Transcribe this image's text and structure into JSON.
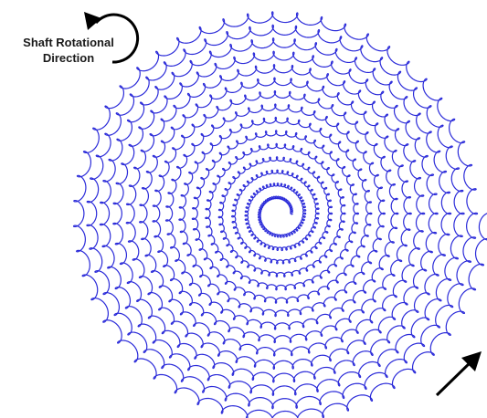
{
  "diagram": {
    "label_line_1": "Shaft Rotational",
    "label_line_2": "Direction",
    "colors": {
      "trajectory": "#2b2bd9",
      "arrow": "#000000",
      "background": "#ffffff"
    },
    "icons": {
      "rotation_arrow": "curved-arrow-ccw-icon",
      "feed_arrow": "arrow-up-right-icon"
    }
  }
}
